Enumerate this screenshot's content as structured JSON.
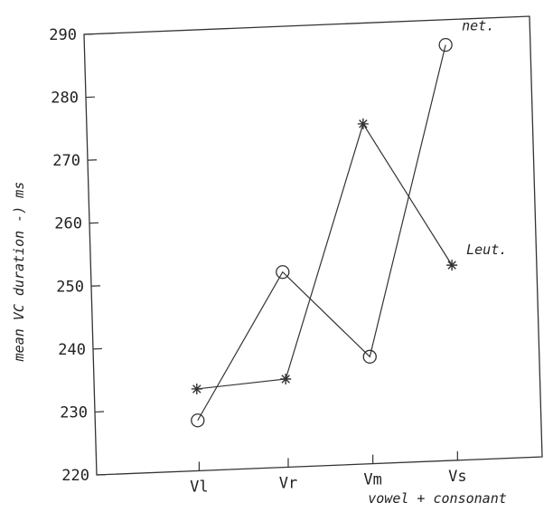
{
  "chart_data": {
    "type": "line",
    "categories": [
      "Vl",
      "Vr",
      "Vm",
      "Vs"
    ],
    "xlabel": "vowel + consonant",
    "ylabel": "mean VC duration -) ms",
    "ylim": [
      220,
      290
    ],
    "yticks": [
      220,
      230,
      240,
      250,
      260,
      270,
      280,
      290
    ],
    "grid": false,
    "series": [
      {
        "name": "net.",
        "marker": "circle",
        "values": [
          228,
          251,
          237,
          286
        ]
      },
      {
        "name": "Leut.",
        "marker": "asterisk",
        "values": [
          233,
          234,
          274,
          251
        ]
      }
    ]
  }
}
